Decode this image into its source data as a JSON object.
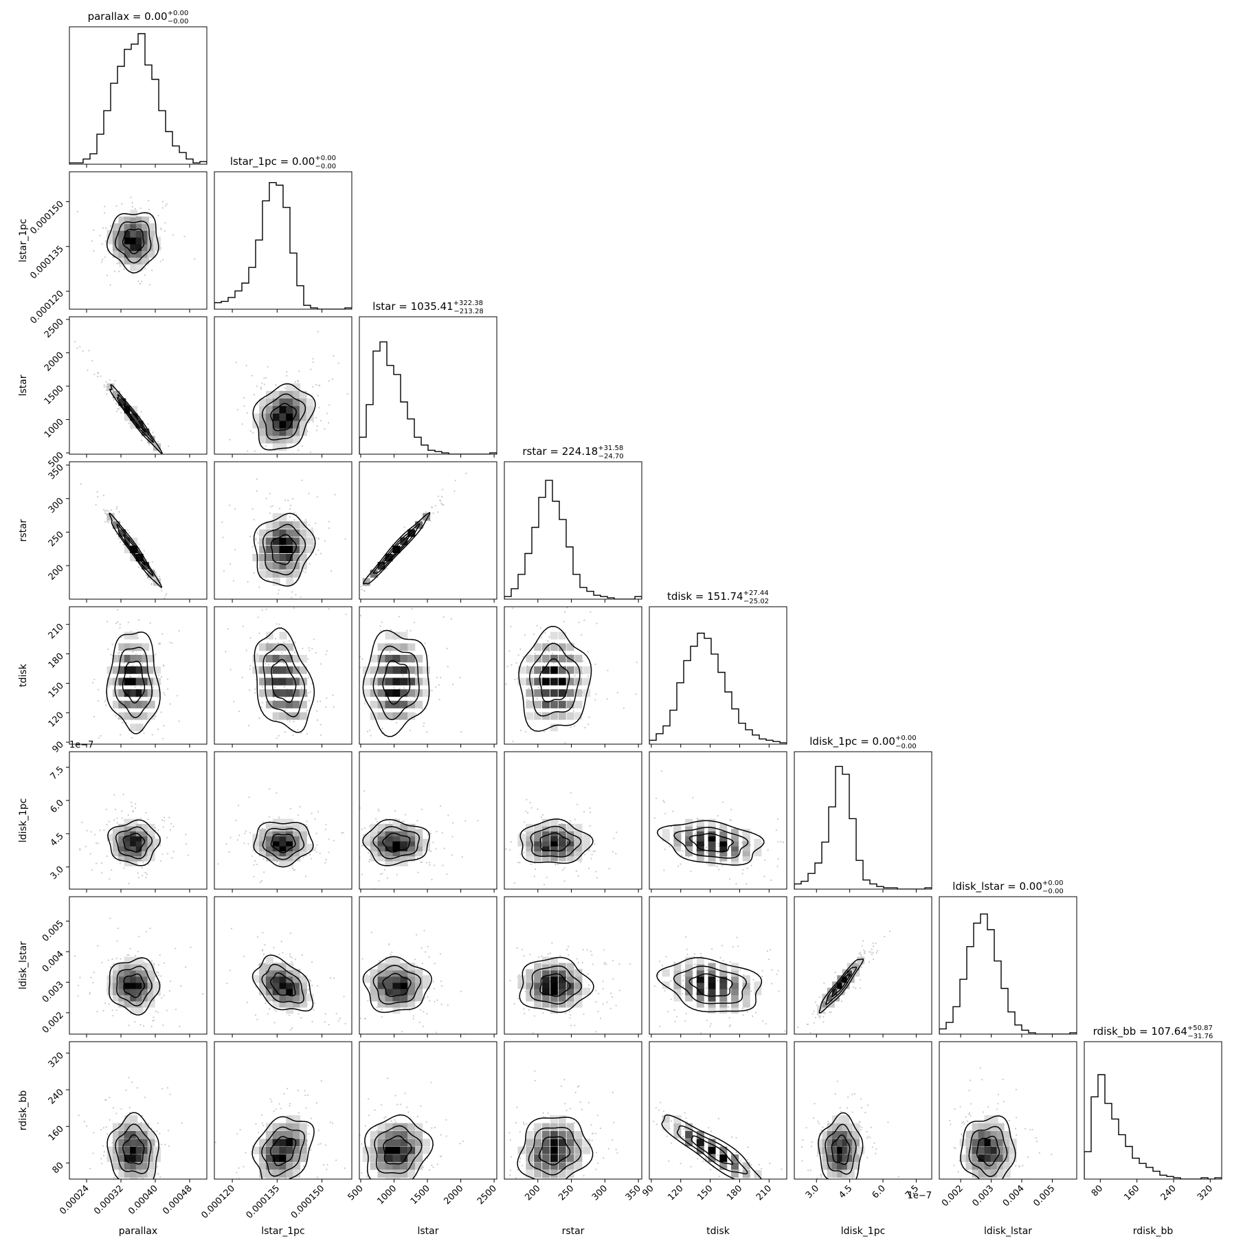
{
  "chart_data": {
    "type": "corner",
    "parameters": [
      {
        "name": "parallax",
        "label": "parallax",
        "range": [
          0.0002,
          0.00052
        ],
        "ticks": [
          0.00024,
          0.00032,
          0.0004,
          0.00048
        ],
        "tick_labels": [
          "0.00024",
          "0.00032",
          "0.00040",
          "0.00048"
        ],
        "median": 0.00035,
        "sigma": 3e-05
      },
      {
        "name": "lstar_1pc",
        "label": "lstar_1pc",
        "range": [
          0.000114,
          0.00016
        ],
        "ticks": [
          0.00012,
          0.000135,
          0.00015
        ],
        "tick_labels": [
          "0.000120",
          "0.000135",
          "0.000150"
        ],
        "median": 0.000137,
        "sigma": 5e-06
      },
      {
        "name": "lstar",
        "label": "lstar",
        "range": [
          480,
          2540
        ],
        "ticks": [
          500,
          1000,
          1500,
          2000,
          2500
        ],
        "tick_labels": [
          "500",
          "1000",
          "1500",
          "2000",
          "2500"
        ],
        "median": 1035.41,
        "sigma": 250
      },
      {
        "name": "rstar",
        "label": "rstar",
        "range": [
          150,
          355
        ],
        "ticks": [
          200,
          250,
          300,
          350
        ],
        "tick_labels": [
          "200",
          "250",
          "300",
          "350"
        ],
        "median": 224.18,
        "sigma": 27
      },
      {
        "name": "tdisk",
        "label": "tdisk",
        "range": [
          88,
          228
        ],
        "ticks": [
          90,
          120,
          150,
          180,
          210
        ],
        "tick_labels": [
          "90",
          "120",
          "150",
          "180",
          "210"
        ],
        "median": 151.74,
        "sigma": 26
      },
      {
        "name": "ldisk_1pc",
        "label": "ldisk_1pc",
        "range": [
          2e-07,
          8.2e-07
        ],
        "ticks": [
          3e-07,
          4.5e-07,
          6e-07,
          7.5e-07
        ],
        "tick_labels": [
          "3.0",
          "4.5",
          "6.0",
          "7.5"
        ],
        "offset_text": "1e−7",
        "median": 4.1e-07,
        "sigma": 5e-08
      },
      {
        "name": "ldisk_lstar",
        "label": "ldisk_lstar",
        "range": [
          0.0013,
          0.0058
        ],
        "ticks": [
          0.002,
          0.003,
          0.004,
          0.005
        ],
        "tick_labels": [
          "0.002",
          "0.003",
          "0.004",
          "0.005"
        ],
        "median": 0.0029,
        "sigma": 0.00045
      },
      {
        "name": "rdisk_bb",
        "label": "rdisk_bb",
        "range": [
          45,
          345
        ],
        "ticks": [
          80,
          160,
          240,
          320
        ],
        "tick_labels": [
          "80",
          "160",
          "240",
          "320"
        ],
        "median": 107.64,
        "sigma": 38
      }
    ],
    "titles": [
      {
        "main": "parallax = 0.00",
        "sup": "+0.00",
        "sub": "−0.00"
      },
      {
        "main": "lstar_1pc = 0.00",
        "sup": "+0.00",
        "sub": "−0.00"
      },
      {
        "main": "lstar = 1035.41",
        "sup": "+322.38",
        "sub": "−213.28"
      },
      {
        "main": "rstar = 224.18",
        "sup": "+31.58",
        "sub": "−24.70"
      },
      {
        "main": "tdisk = 151.74",
        "sup": "+27.44",
        "sub": "−25.02"
      },
      {
        "main": "ldisk_1pc = 0.00",
        "sup": "+0.00",
        "sub": "−0.00"
      },
      {
        "main": "ldisk_lstar = 0.00",
        "sup": "+0.00",
        "sub": "−0.00"
      },
      {
        "main": "rdisk_bb = 107.64",
        "sup": "+50.87",
        "sub": "−31.76"
      }
    ],
    "histograms": [
      [
        0.01,
        0.01,
        0.04,
        0.08,
        0.23,
        0.41,
        0.62,
        0.75,
        0.88,
        0.92,
        1.0,
        0.76,
        0.65,
        0.41,
        0.25,
        0.14,
        0.09,
        0.04,
        0.01,
        0.02
      ],
      [
        0.05,
        0.06,
        0.09,
        0.14,
        0.2,
        0.32,
        0.53,
        0.83,
        0.97,
        0.95,
        0.78,
        0.43,
        0.18,
        0.03,
        0.01,
        0.0,
        0.0,
        0.0,
        0.0,
        0.01
      ],
      [
        0.13,
        0.38,
        0.79,
        0.86,
        0.68,
        0.61,
        0.4,
        0.27,
        0.13,
        0.07,
        0.03,
        0.02,
        0.01,
        0.0,
        0.0,
        0.0,
        0.0,
        0.0,
        0.0,
        0.01
      ],
      [
        0.02,
        0.08,
        0.19,
        0.35,
        0.55,
        0.78,
        0.91,
        0.75,
        0.61,
        0.4,
        0.19,
        0.09,
        0.06,
        0.03,
        0.02,
        0.01,
        0.0,
        0.0,
        0.0,
        0.02
      ],
      [
        0.03,
        0.08,
        0.14,
        0.26,
        0.47,
        0.64,
        0.75,
        0.85,
        0.81,
        0.69,
        0.55,
        0.4,
        0.27,
        0.16,
        0.11,
        0.07,
        0.04,
        0.03,
        0.02,
        0.01
      ],
      [
        0.04,
        0.06,
        0.12,
        0.2,
        0.36,
        0.63,
        0.94,
        0.88,
        0.54,
        0.22,
        0.07,
        0.04,
        0.02,
        0.01,
        0.01,
        0.0,
        0.0,
        0.0,
        0.0,
        0.01
      ],
      [
        0.04,
        0.09,
        0.21,
        0.42,
        0.67,
        0.85,
        0.92,
        0.8,
        0.56,
        0.35,
        0.17,
        0.07,
        0.03,
        0.01,
        0.0,
        0.0,
        0.0,
        0.0,
        0.0,
        0.01
      ],
      [
        0.21,
        0.63,
        0.8,
        0.58,
        0.46,
        0.34,
        0.25,
        0.16,
        0.12,
        0.09,
        0.06,
        0.03,
        0.02,
        0.01,
        0.0,
        0.0,
        0.0,
        0.01,
        0.0,
        0.01
      ]
    ],
    "correlations": [
      [
        0,
        0.0,
        -0.98,
        -0.98,
        -0.05,
        0.0,
        0.0,
        -0.05
      ],
      [
        0.0,
        0,
        0.2,
        0.1,
        -0.3,
        0.0,
        -0.4,
        0.25
      ],
      [
        -0.98,
        0.2,
        0,
        0.99,
        0.05,
        0.0,
        0.0,
        0.1
      ],
      [
        -0.98,
        0.1,
        0.99,
        0,
        0.05,
        0.0,
        0.0,
        0.1
      ],
      [
        -0.05,
        -0.3,
        0.05,
        0.05,
        0,
        -0.25,
        -0.25,
        -0.9
      ],
      [
        0.0,
        0.0,
        0.0,
        0.0,
        -0.25,
        0,
        0.95,
        0.0
      ],
      [
        0.0,
        -0.4,
        0.0,
        0.0,
        -0.25,
        0.95,
        0,
        0.0
      ],
      [
        -0.05,
        0.25,
        0.1,
        0.1,
        -0.9,
        0.0,
        0.0,
        0
      ]
    ],
    "contour_levels_sigma": [
      1,
      2,
      3
    ],
    "grid": false,
    "legend": "none"
  }
}
